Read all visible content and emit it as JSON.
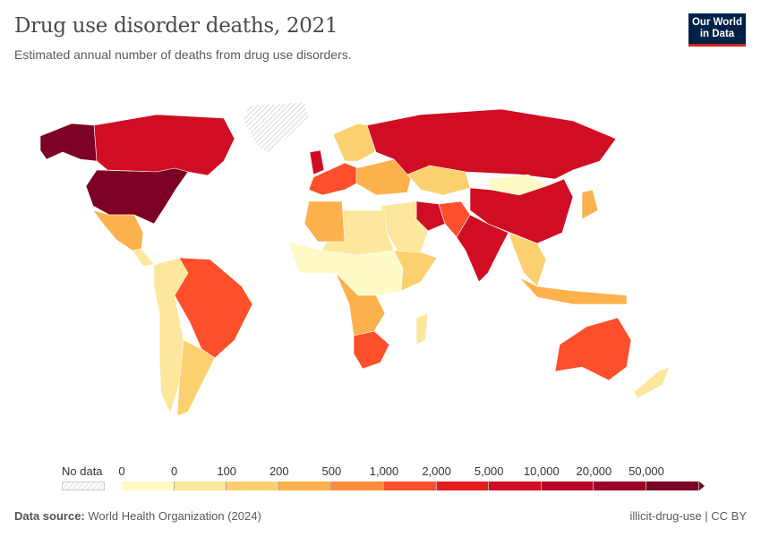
{
  "header": {
    "title": "Drug use disorder deaths, 2021",
    "subtitle": "Estimated annual number of deaths from drug use disorders.",
    "logo_line1": "Our World",
    "logo_line2": "in Data"
  },
  "legend": {
    "no_data_label": "No data",
    "ticks": [
      "0",
      "0",
      "100",
      "200",
      "500",
      "1,000",
      "2,000",
      "5,000",
      "10,000",
      "20,000",
      "50,000"
    ],
    "colors": [
      "#fefac6",
      "#fde79c",
      "#fdd06f",
      "#fdb14c",
      "#fd8c3b",
      "#fc4f2a",
      "#e41d1c",
      "#d00d22",
      "#ba0026",
      "#9d0029",
      "#7d0025"
    ],
    "no_data_color": "#eeeeee"
  },
  "map": {
    "regions": [
      {
        "id": "greenland",
        "bin": -1
      },
      {
        "id": "canada",
        "bin": 7
      },
      {
        "id": "alaska",
        "bin": 10
      },
      {
        "id": "usa",
        "bin": 10
      },
      {
        "id": "mexico",
        "bin": 3
      },
      {
        "id": "central-america",
        "bin": 1
      },
      {
        "id": "south-america-west",
        "bin": 1
      },
      {
        "id": "brazil",
        "bin": 5
      },
      {
        "id": "argentina",
        "bin": 2
      },
      {
        "id": "uk",
        "bin": 7
      },
      {
        "id": "western-europe",
        "bin": 5
      },
      {
        "id": "scandinavia",
        "bin": 2
      },
      {
        "id": "eastern-europe",
        "bin": 3
      },
      {
        "id": "russia",
        "bin": 7
      },
      {
        "id": "kazakhstan",
        "bin": 2
      },
      {
        "id": "mongolia",
        "bin": 0
      },
      {
        "id": "china",
        "bin": 7
      },
      {
        "id": "japan",
        "bin": 3
      },
      {
        "id": "iran",
        "bin": 7
      },
      {
        "id": "pakistan",
        "bin": 5
      },
      {
        "id": "middle-east",
        "bin": 1
      },
      {
        "id": "india",
        "bin": 7
      },
      {
        "id": "southeast-asia",
        "bin": 2
      },
      {
        "id": "indonesia",
        "bin": 3
      },
      {
        "id": "north-africa",
        "bin": 1
      },
      {
        "id": "algeria",
        "bin": 3
      },
      {
        "id": "sub-saharan-africa",
        "bin": 0
      },
      {
        "id": "central-africa",
        "bin": 3
      },
      {
        "id": "east-africa",
        "bin": 2
      },
      {
        "id": "south-africa",
        "bin": 5
      },
      {
        "id": "madagascar",
        "bin": 1
      },
      {
        "id": "australia",
        "bin": 5
      },
      {
        "id": "new-zealand",
        "bin": 1
      }
    ]
  },
  "footer": {
    "source_label": "Data source:",
    "source_value": "World Health Organization (2024)",
    "slug": "illicit-drug-use | CC BY"
  }
}
